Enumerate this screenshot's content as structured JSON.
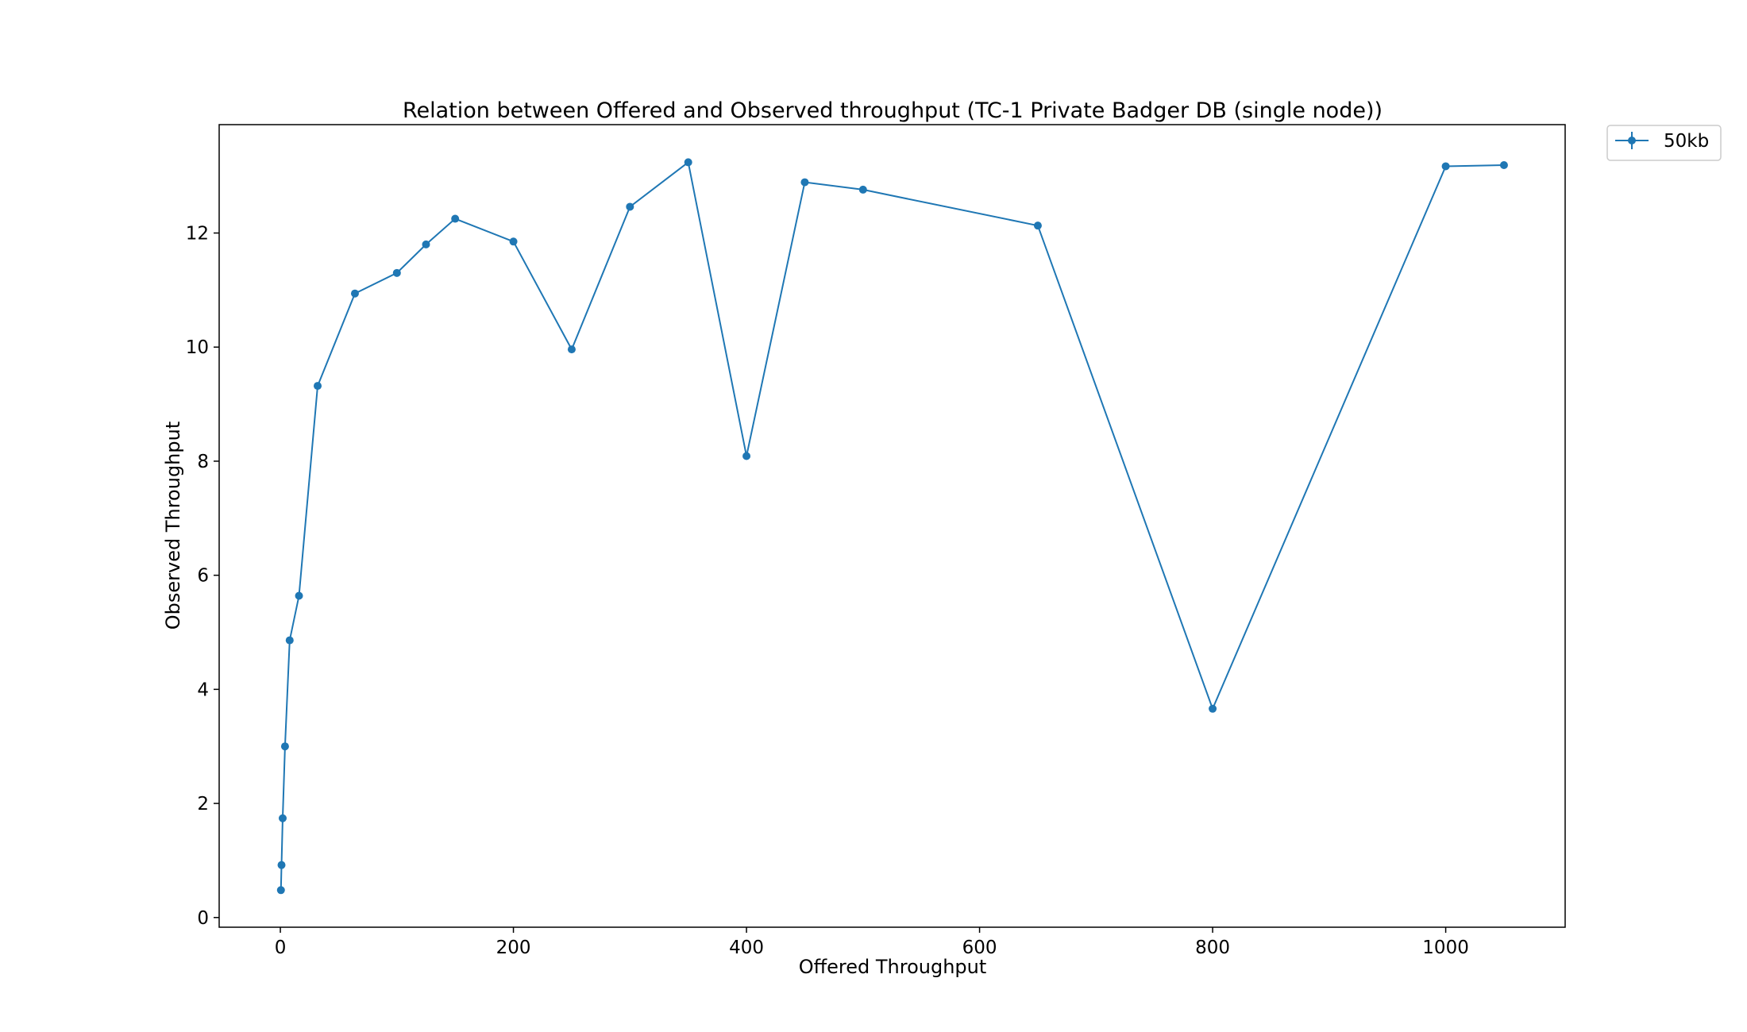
{
  "chart_data": {
    "type": "line",
    "title": "Relation between Offered and Observed throughput (TC-1  Private Badger DB (single node))",
    "xlabel": "Offered Throughput",
    "ylabel": "Observed Throughput",
    "xlim": [
      -52.5,
      1102.5
    ],
    "ylim": [
      -0.17,
      13.9
    ],
    "xticks": [
      0,
      200,
      400,
      600,
      800,
      1000
    ],
    "yticks": [
      0,
      2,
      4,
      6,
      8,
      10,
      12
    ],
    "grid": false,
    "legend_position": "outside-top-right",
    "series": [
      {
        "name": "50kb",
        "color": "#1f77b4",
        "marker": "circle",
        "x": [
          0.5,
          1,
          2,
          4,
          8,
          16,
          32,
          64,
          100,
          125,
          150,
          200,
          250,
          300,
          350,
          400,
          450,
          500,
          650,
          800,
          1000,
          1050
        ],
        "y": [
          0.48,
          0.92,
          1.74,
          3.0,
          4.86,
          5.64,
          9.32,
          10.94,
          11.3,
          11.8,
          12.25,
          11.85,
          9.96,
          12.46,
          13.24,
          8.09,
          12.89,
          12.76,
          12.13,
          3.66,
          13.17,
          13.19
        ]
      }
    ]
  }
}
